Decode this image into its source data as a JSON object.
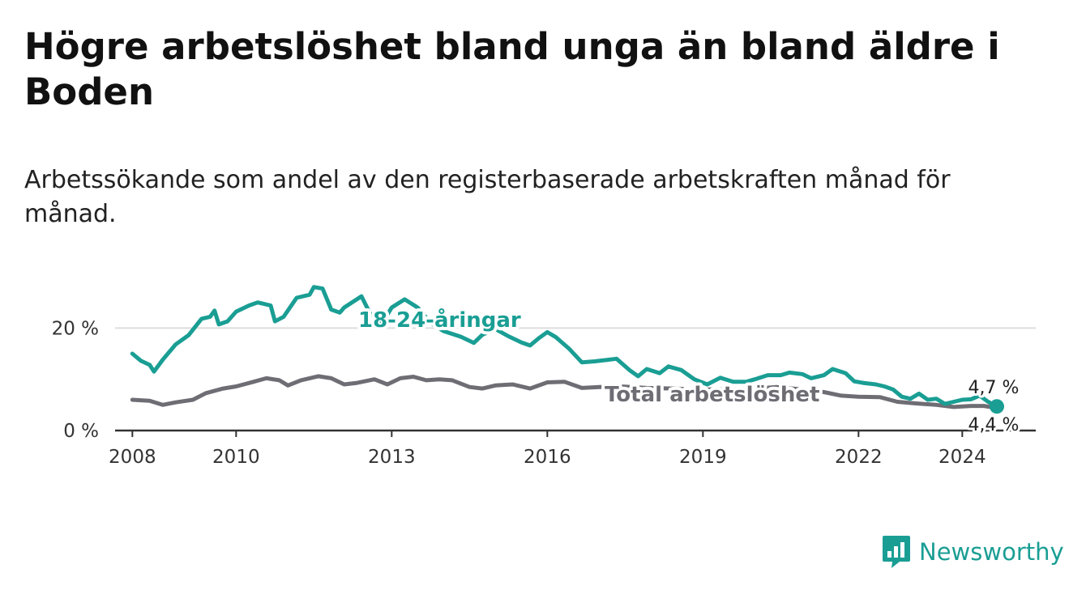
{
  "title": "Högre arbetslöshet bland unga än bland äldre i Boden",
  "subtitle": "Arbetssökande som andel av den registerbaserade arbetskraften månad för månad.",
  "brand": "Newsworthy",
  "colors": {
    "youth": "#1a9e94",
    "total": "#6e6d74",
    "grid": "#dddddd",
    "axis": "#333333"
  },
  "chart_data": {
    "type": "line",
    "x_range": [
      "2007-09",
      "2025-06"
    ],
    "y_range": [
      0,
      30
    ],
    "x_ticks": [
      {
        "date": "2008-01",
        "label": "2008"
      },
      {
        "date": "2010-01",
        "label": "2010"
      },
      {
        "date": "2013-01",
        "label": "2013"
      },
      {
        "date": "2016-01",
        "label": "2016"
      },
      {
        "date": "2019-01",
        "label": "2019"
      },
      {
        "date": "2022-01",
        "label": "2022"
      },
      {
        "date": "2024-01",
        "label": "2024"
      }
    ],
    "y_ticks": [
      {
        "value": 0,
        "label": "0 %"
      },
      {
        "value": 20,
        "label": "20 %"
      }
    ],
    "grid": true,
    "series": [
      {
        "name": "18-24-åringar",
        "end_label": "4,7 %",
        "points": [
          [
            "2008-01",
            15.0
          ],
          [
            "2008-03",
            13.6
          ],
          [
            "2008-05",
            12.8
          ],
          [
            "2008-06",
            11.5
          ],
          [
            "2008-08",
            13.8
          ],
          [
            "2008-11",
            16.8
          ],
          [
            "2009-02",
            18.6
          ],
          [
            "2009-05",
            21.8
          ],
          [
            "2009-07",
            22.2
          ],
          [
            "2009-08",
            23.4
          ],
          [
            "2009-09",
            20.7
          ],
          [
            "2009-11",
            21.3
          ],
          [
            "2010-01",
            23.2
          ],
          [
            "2010-04",
            24.4
          ],
          [
            "2010-06",
            25.0
          ],
          [
            "2010-09",
            24.4
          ],
          [
            "2010-10",
            21.3
          ],
          [
            "2010-12",
            22.2
          ],
          [
            "2011-03",
            25.9
          ],
          [
            "2011-06",
            26.5
          ],
          [
            "2011-07",
            28.0
          ],
          [
            "2011-09",
            27.7
          ],
          [
            "2011-11",
            23.6
          ],
          [
            "2012-01",
            23.0
          ],
          [
            "2012-02",
            24.0
          ],
          [
            "2012-06",
            26.2
          ],
          [
            "2012-08",
            22.8
          ],
          [
            "2012-11",
            21.2
          ],
          [
            "2013-01",
            24.0
          ],
          [
            "2013-04",
            25.6
          ],
          [
            "2013-07",
            24.0
          ],
          [
            "2013-10",
            21.0
          ],
          [
            "2014-01",
            19.4
          ],
          [
            "2014-05",
            18.3
          ],
          [
            "2014-08",
            17.1
          ],
          [
            "2014-10",
            18.7
          ],
          [
            "2015-01",
            19.8
          ],
          [
            "2015-04",
            18.4
          ],
          [
            "2015-07",
            17.2
          ],
          [
            "2015-09",
            16.6
          ],
          [
            "2015-11",
            18.0
          ],
          [
            "2016-01",
            19.2
          ],
          [
            "2016-03",
            18.2
          ],
          [
            "2016-06",
            16.0
          ],
          [
            "2016-09",
            13.3
          ],
          [
            "2016-12",
            13.5
          ],
          [
            "2017-03",
            13.8
          ],
          [
            "2017-05",
            14.0
          ],
          [
            "2017-08",
            11.8
          ],
          [
            "2017-10",
            10.6
          ],
          [
            "2017-12",
            12.0
          ],
          [
            "2018-03",
            11.2
          ],
          [
            "2018-05",
            12.5
          ],
          [
            "2018-08",
            11.8
          ],
          [
            "2018-11",
            10.0
          ],
          [
            "2019-02",
            9.0
          ],
          [
            "2019-05",
            10.3
          ],
          [
            "2019-08",
            9.5
          ],
          [
            "2019-11",
            9.5
          ],
          [
            "2020-01",
            10.0
          ],
          [
            "2020-04",
            10.8
          ],
          [
            "2020-07",
            10.8
          ],
          [
            "2020-09",
            11.3
          ],
          [
            "2020-12",
            11.0
          ],
          [
            "2021-02",
            10.2
          ],
          [
            "2021-05",
            10.8
          ],
          [
            "2021-07",
            12.0
          ],
          [
            "2021-10",
            11.2
          ],
          [
            "2021-12",
            9.6
          ],
          [
            "2022-02",
            9.3
          ],
          [
            "2022-05",
            9.0
          ],
          [
            "2022-07",
            8.6
          ],
          [
            "2022-09",
            8.0
          ],
          [
            "2022-11",
            6.6
          ],
          [
            "2023-01",
            6.2
          ],
          [
            "2023-03",
            7.2
          ],
          [
            "2023-05",
            6.0
          ],
          [
            "2023-07",
            6.2
          ],
          [
            "2023-09",
            5.2
          ],
          [
            "2023-11",
            5.6
          ],
          [
            "2024-01",
            6.0
          ],
          [
            "2024-03",
            6.1
          ],
          [
            "2024-05",
            6.8
          ],
          [
            "2024-07",
            5.6
          ],
          [
            "2024-09",
            4.7
          ]
        ]
      },
      {
        "name": "Total arbetslöshet",
        "end_label": "4,4 %",
        "points": [
          [
            "2008-01",
            6.0
          ],
          [
            "2008-05",
            5.8
          ],
          [
            "2008-08",
            5.0
          ],
          [
            "2008-11",
            5.5
          ],
          [
            "2009-03",
            6.0
          ],
          [
            "2009-06",
            7.3
          ],
          [
            "2009-10",
            8.2
          ],
          [
            "2010-01",
            8.6
          ],
          [
            "2010-05",
            9.5
          ],
          [
            "2010-08",
            10.2
          ],
          [
            "2010-11",
            9.8
          ],
          [
            "2011-01",
            8.8
          ],
          [
            "2011-04",
            9.8
          ],
          [
            "2011-08",
            10.6
          ],
          [
            "2011-11",
            10.2
          ],
          [
            "2012-02",
            9.0
          ],
          [
            "2012-05",
            9.3
          ],
          [
            "2012-09",
            10.0
          ],
          [
            "2012-12",
            9.0
          ],
          [
            "2013-03",
            10.2
          ],
          [
            "2013-06",
            10.5
          ],
          [
            "2013-09",
            9.8
          ],
          [
            "2013-12",
            10.0
          ],
          [
            "2014-03",
            9.8
          ],
          [
            "2014-07",
            8.5
          ],
          [
            "2014-10",
            8.2
          ],
          [
            "2015-01",
            8.8
          ],
          [
            "2015-05",
            9.0
          ],
          [
            "2015-09",
            8.2
          ],
          [
            "2016-01",
            9.4
          ],
          [
            "2016-05",
            9.5
          ],
          [
            "2016-09",
            8.3
          ],
          [
            "2017-01",
            8.5
          ],
          [
            "2017-06",
            8.6
          ],
          [
            "2017-12",
            8.3
          ],
          [
            "2018-06",
            8.2
          ],
          [
            "2018-12",
            8.0
          ],
          [
            "2019-06",
            8.0
          ],
          [
            "2019-12",
            8.1
          ],
          [
            "2020-06",
            8.5
          ],
          [
            "2020-12",
            8.0
          ],
          [
            "2021-05",
            7.5
          ],
          [
            "2021-09",
            6.8
          ],
          [
            "2022-01",
            6.6
          ],
          [
            "2022-06",
            6.5
          ],
          [
            "2022-10",
            5.6
          ],
          [
            "2023-02",
            5.3
          ],
          [
            "2023-07",
            5.0
          ],
          [
            "2023-11",
            4.6
          ],
          [
            "2024-03",
            4.8
          ],
          [
            "2024-06",
            4.8
          ],
          [
            "2024-09",
            4.4
          ]
        ]
      }
    ]
  }
}
